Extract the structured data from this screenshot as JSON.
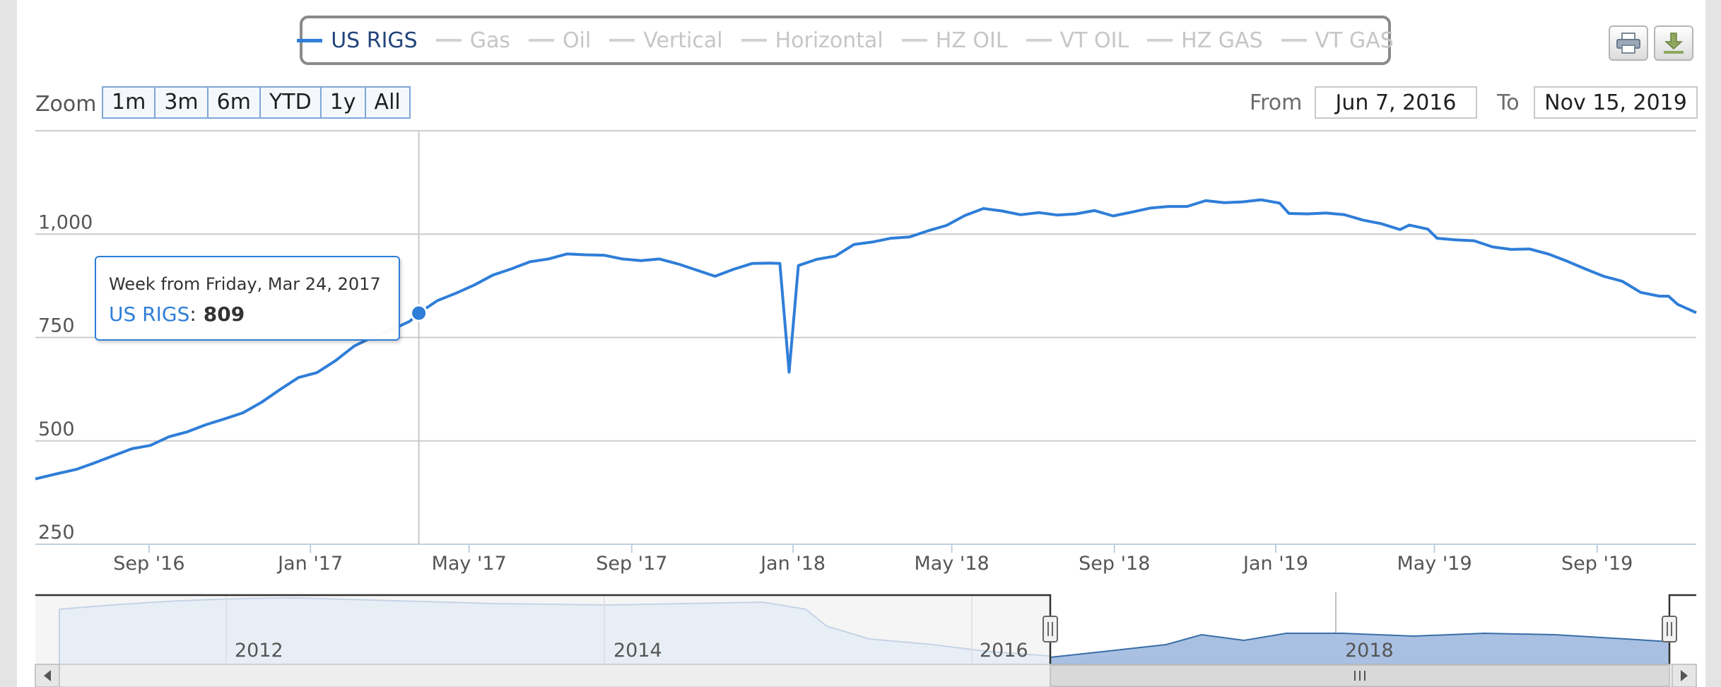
{
  "legend": [
    "US RIGS",
    "Gas",
    "Oil",
    "Vertical",
    "Horizontal",
    "HZ OIL",
    "VT OIL",
    "HZ GAS",
    "VT GAS"
  ],
  "legend_active": "US RIGS",
  "export": {
    "print_icon": "printer-icon",
    "download_icon": "download-icon"
  },
  "zoom": {
    "label": "Zoom",
    "buttons": [
      "1m",
      "3m",
      "6m",
      "YTD",
      "1y",
      "All"
    ]
  },
  "range": {
    "from_label": "From",
    "from_value": "Jun 7, 2016",
    "to_label": "To",
    "to_value": "Nov 15, 2019"
  },
  "tooltip": {
    "header": "Week from Friday, Mar 24, 2017",
    "series": "US RIGS",
    "value": "809"
  },
  "colors": {
    "series": "#2f7ed8",
    "grid": "#cccccc",
    "navigator_fill": "#a9c0e2",
    "navigator_bg": "#e8eef5"
  },
  "chart_data": {
    "type": "line",
    "title": "",
    "xlabel": "",
    "ylabel": "",
    "ylim": [
      250,
      1250
    ],
    "yticks": [
      250,
      500,
      750,
      1000
    ],
    "ytick_labels": [
      "250",
      "500",
      "750",
      "1,000"
    ],
    "xtick_labels": [
      "Sep '16",
      "Jan '17",
      "May '17",
      "Sep '17",
      "Jan '18",
      "May '18",
      "Sep '18",
      "Jan '19",
      "May '19",
      "Sep '19"
    ],
    "xtick_dates": [
      "2016-09-01",
      "2017-01-01",
      "2017-05-01",
      "2017-09-01",
      "2018-01-01",
      "2018-05-01",
      "2018-09-01",
      "2019-01-01",
      "2019-05-01",
      "2019-09-01"
    ],
    "xlim": [
      "2016-06-07",
      "2019-11-15"
    ],
    "grid": true,
    "highlight": {
      "date": "2017-03-24",
      "value": 809
    },
    "series": [
      {
        "name": "US RIGS",
        "points": [
          [
            "2016-06-07",
            408
          ],
          [
            "2016-06-24",
            421
          ],
          [
            "2016-07-08",
            431
          ],
          [
            "2016-07-22",
            447
          ],
          [
            "2016-08-05",
            464
          ],
          [
            "2016-08-19",
            481
          ],
          [
            "2016-09-02",
            489
          ],
          [
            "2016-09-16",
            510
          ],
          [
            "2016-09-30",
            522
          ],
          [
            "2016-10-14",
            539
          ],
          [
            "2016-10-28",
            553
          ],
          [
            "2016-11-11",
            568
          ],
          [
            "2016-11-25",
            593
          ],
          [
            "2016-12-09",
            624
          ],
          [
            "2016-12-23",
            653
          ],
          [
            "2017-01-06",
            665
          ],
          [
            "2017-01-20",
            694
          ],
          [
            "2017-02-03",
            729
          ],
          [
            "2017-02-17",
            751
          ],
          [
            "2017-03-03",
            768
          ],
          [
            "2017-03-17",
            789
          ],
          [
            "2017-03-24",
            809
          ],
          [
            "2017-04-07",
            839
          ],
          [
            "2017-04-21",
            857
          ],
          [
            "2017-05-05",
            877
          ],
          [
            "2017-05-19",
            901
          ],
          [
            "2017-06-02",
            916
          ],
          [
            "2017-06-16",
            933
          ],
          [
            "2017-06-30",
            940
          ],
          [
            "2017-07-14",
            952
          ],
          [
            "2017-07-28",
            950
          ],
          [
            "2017-08-11",
            949
          ],
          [
            "2017-08-25",
            940
          ],
          [
            "2017-09-08",
            936
          ],
          [
            "2017-09-22",
            940
          ],
          [
            "2017-10-06",
            928
          ],
          [
            "2017-10-20",
            913
          ],
          [
            "2017-11-03",
            898
          ],
          [
            "2017-11-17",
            915
          ],
          [
            "2017-12-01",
            929
          ],
          [
            "2017-12-15",
            930
          ],
          [
            "2017-12-22",
            929
          ],
          [
            "2017-12-29",
            666
          ],
          [
            "2018-01-05",
            924
          ],
          [
            "2018-01-19",
            939
          ],
          [
            "2018-02-02",
            947
          ],
          [
            "2018-02-16",
            975
          ],
          [
            "2018-03-02",
            981
          ],
          [
            "2018-03-16",
            990
          ],
          [
            "2018-03-30",
            993
          ],
          [
            "2018-04-13",
            1008
          ],
          [
            "2018-04-27",
            1021
          ],
          [
            "2018-05-11",
            1045
          ],
          [
            "2018-05-25",
            1062
          ],
          [
            "2018-06-08",
            1056
          ],
          [
            "2018-06-22",
            1047
          ],
          [
            "2018-07-06",
            1052
          ],
          [
            "2018-07-20",
            1046
          ],
          [
            "2018-08-03",
            1049
          ],
          [
            "2018-08-17",
            1057
          ],
          [
            "2018-08-31",
            1044
          ],
          [
            "2018-09-14",
            1053
          ],
          [
            "2018-09-28",
            1063
          ],
          [
            "2018-10-12",
            1067
          ],
          [
            "2018-10-26",
            1067
          ],
          [
            "2018-11-09",
            1081
          ],
          [
            "2018-11-23",
            1076
          ],
          [
            "2018-12-07",
            1078
          ],
          [
            "2018-12-21",
            1083
          ],
          [
            "2019-01-04",
            1075
          ],
          [
            "2019-01-11",
            1050
          ],
          [
            "2019-01-25",
            1049
          ],
          [
            "2019-02-08",
            1051
          ],
          [
            "2019-02-22",
            1047
          ],
          [
            "2019-03-08",
            1034
          ],
          [
            "2019-03-22",
            1025
          ],
          [
            "2019-04-05",
            1011
          ],
          [
            "2019-04-12",
            1022
          ],
          [
            "2019-04-26",
            1012
          ],
          [
            "2019-05-03",
            990
          ],
          [
            "2019-05-17",
            986
          ],
          [
            "2019-05-31",
            984
          ],
          [
            "2019-06-14",
            969
          ],
          [
            "2019-06-28",
            963
          ],
          [
            "2019-07-12",
            964
          ],
          [
            "2019-07-26",
            952
          ],
          [
            "2019-08-09",
            935
          ],
          [
            "2019-08-23",
            916
          ],
          [
            "2019-09-06",
            898
          ],
          [
            "2019-09-20",
            886
          ],
          [
            "2019-10-04",
            859
          ],
          [
            "2019-10-18",
            850
          ],
          [
            "2019-10-25",
            850
          ],
          [
            "2019-11-01",
            830
          ],
          [
            "2019-11-15",
            810
          ]
        ]
      }
    ],
    "navigator": {
      "xtick_labels": [
        "2012",
        "2014",
        "2016",
        "2018"
      ],
      "selected_range": [
        "2016-06-07",
        "2019-11-15"
      ]
    }
  }
}
